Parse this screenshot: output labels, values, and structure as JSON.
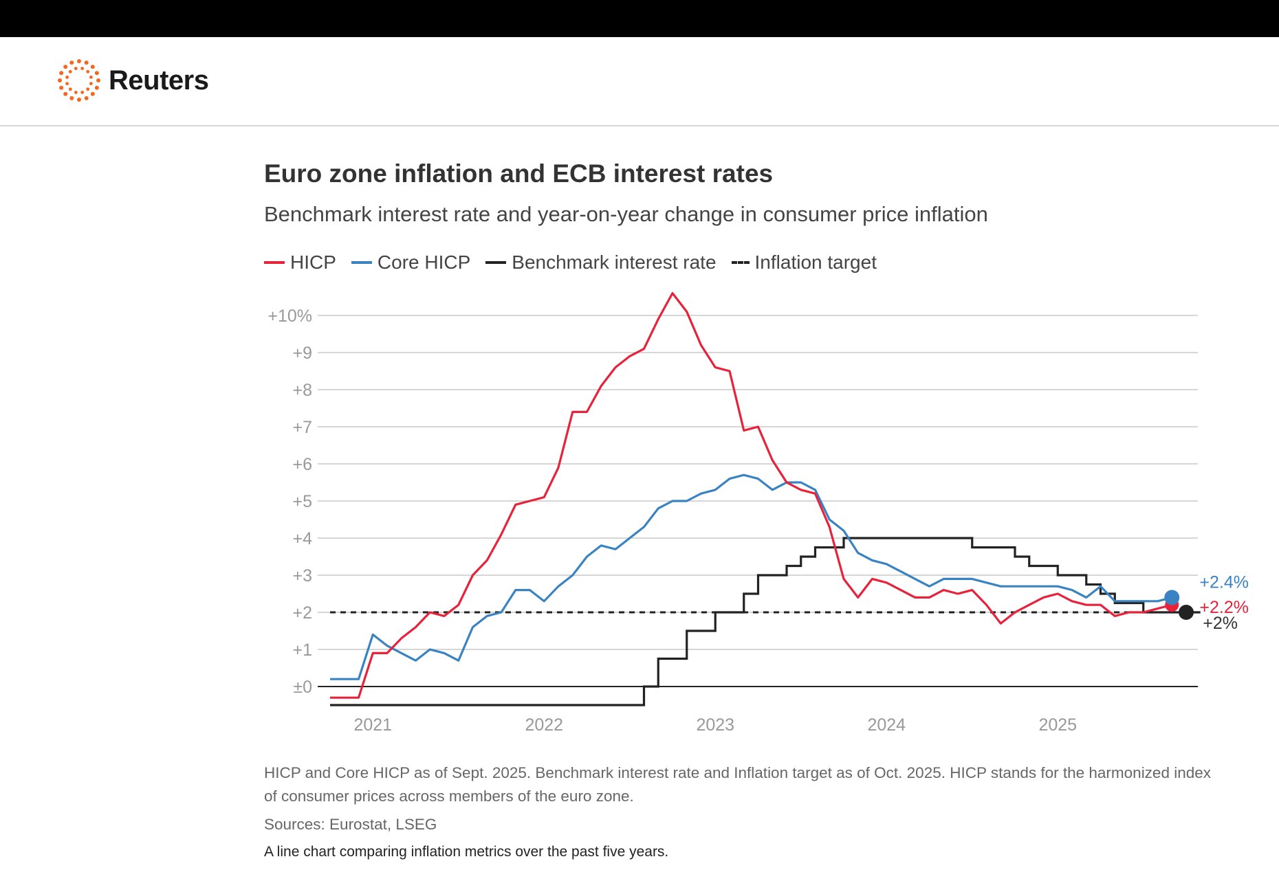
{
  "header": {
    "brand": "Reuters",
    "logo_icon": "reuters-dot-ring-icon",
    "accent": "#f26722"
  },
  "title": "Euro zone inflation and ECB interest rates",
  "subtitle": "Benchmark interest rate and year-on-year change in consumer price inflation",
  "legend": [
    {
      "label": "HICP",
      "color": "#e8223a",
      "style": "solid"
    },
    {
      "label": "Core HICP",
      "color": "#3a83c2",
      "style": "solid"
    },
    {
      "label": "Benchmark interest rate",
      "color": "#222222",
      "style": "solid"
    },
    {
      "label": "Inflation target",
      "color": "#222222",
      "style": "dashed"
    }
  ],
  "note": "HICP and Core HICP as of Sept. 2025. Benchmark interest rate and Inflation target as of Oct. 2025. HICP stands for the harmonized index of consumer prices across members of the euro zone.",
  "sources": "Sources: Eurostat, LSEG",
  "alt_text": "A line chart comparing inflation metrics over the past five years.",
  "chart_data": {
    "type": "line",
    "x_unit": "month",
    "x_start": "2020-10",
    "y_ticks": [
      {
        "value": 10,
        "label": "+10%"
      },
      {
        "value": 9,
        "label": "+9"
      },
      {
        "value": 8,
        "label": "+8"
      },
      {
        "value": 7,
        "label": "+7"
      },
      {
        "value": 6,
        "label": "+6"
      },
      {
        "value": 5,
        "label": "+5"
      },
      {
        "value": 4,
        "label": "+4"
      },
      {
        "value": 3,
        "label": "+3"
      },
      {
        "value": 2,
        "label": "+2"
      },
      {
        "value": 1,
        "label": "+1"
      },
      {
        "value": 0,
        "label": "±0"
      }
    ],
    "x_ticks": [
      {
        "month": "2021-01",
        "label": "2021"
      },
      {
        "month": "2022-01",
        "label": "2022"
      },
      {
        "month": "2023-01",
        "label": "2023"
      },
      {
        "month": "2024-01",
        "label": "2024"
      },
      {
        "month": "2025-01",
        "label": "2025"
      }
    ],
    "ylim": [
      -0.5,
      10.6
    ],
    "xlim": [
      "2020-10",
      "2025-11"
    ],
    "grid": true,
    "legend_position": "top-left",
    "series": [
      {
        "name": "HICP",
        "color": "#e8223a",
        "kind": "line",
        "start": "2020-10",
        "end_label": "+2.2%",
        "values": [
          -0.3,
          -0.3,
          -0.3,
          0.9,
          0.9,
          1.3,
          1.6,
          2.0,
          1.9,
          2.2,
          3.0,
          3.4,
          4.1,
          4.9,
          5.0,
          5.1,
          5.9,
          7.4,
          7.4,
          8.1,
          8.6,
          8.9,
          9.1,
          9.9,
          10.6,
          10.1,
          9.2,
          8.6,
          8.5,
          6.9,
          7.0,
          6.1,
          5.5,
          5.3,
          5.2,
          4.3,
          2.9,
          2.4,
          2.9,
          2.8,
          2.6,
          2.4,
          2.4,
          2.6,
          2.5,
          2.6,
          2.2,
          1.7,
          2.0,
          2.2,
          2.4,
          2.5,
          2.3,
          2.2,
          2.2,
          1.9,
          2.0,
          2.0,
          2.1,
          2.2
        ]
      },
      {
        "name": "Core HICP",
        "color": "#3a83c2",
        "kind": "line",
        "start": "2020-10",
        "end_label": "+2.4%",
        "values": [
          0.2,
          0.2,
          0.2,
          1.4,
          1.1,
          0.9,
          0.7,
          1.0,
          0.9,
          0.7,
          1.6,
          1.9,
          2.0,
          2.6,
          2.6,
          2.3,
          2.7,
          3.0,
          3.5,
          3.8,
          3.7,
          4.0,
          4.3,
          4.8,
          5.0,
          5.0,
          5.2,
          5.3,
          5.6,
          5.7,
          5.6,
          5.3,
          5.5,
          5.5,
          5.3,
          4.5,
          4.2,
          3.6,
          3.4,
          3.3,
          3.1,
          2.9,
          2.7,
          2.9,
          2.9,
          2.9,
          2.8,
          2.7,
          2.7,
          2.7,
          2.7,
          2.7,
          2.6,
          2.4,
          2.7,
          2.3,
          2.3,
          2.3,
          2.3,
          2.4
        ]
      },
      {
        "name": "Benchmark interest rate",
        "color": "#222222",
        "kind": "step",
        "end_label": "+2%",
        "steps": [
          [
            "2020-10",
            -0.5
          ],
          [
            "2022-08",
            0.0
          ],
          [
            "2022-09",
            0.75
          ],
          [
            "2022-11",
            1.5
          ],
          [
            "2023-01",
            2.0
          ],
          [
            "2023-03",
            2.5
          ],
          [
            "2023-04",
            3.0
          ],
          [
            "2023-06",
            3.25
          ],
          [
            "2023-07",
            3.5
          ],
          [
            "2023-08",
            3.75
          ],
          [
            "2023-10",
            4.0
          ],
          [
            "2024-07",
            3.75
          ],
          [
            "2024-10",
            3.5
          ],
          [
            "2024-11",
            3.25
          ],
          [
            "2025-01",
            3.0
          ],
          [
            "2025-03",
            2.75
          ],
          [
            "2025-04",
            2.5
          ],
          [
            "2025-05",
            2.25
          ],
          [
            "2025-07",
            2.0
          ],
          [
            "2025-11",
            2.0
          ]
        ]
      },
      {
        "name": "Inflation target",
        "color": "#222222",
        "kind": "dashed",
        "x": [
          "2020-10",
          "2025-10"
        ],
        "values": [
          2.0,
          2.0
        ]
      }
    ]
  }
}
